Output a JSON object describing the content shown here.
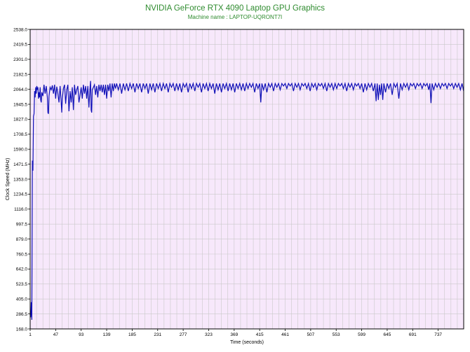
{
  "colors": {
    "plot_background": "#f7e8fb",
    "grid": "#c9c9c9",
    "series_line": "#1010b8",
    "title": "#2e8b2e",
    "axis": "#000000"
  },
  "chart_data": {
    "type": "line",
    "title": "NVIDIA GeForce RTX 4090 Laptop GPU Graphics",
    "subtitle": "Machine name : LAPTOP-UQRONT7I",
    "xlabel": "Time (seconds)",
    "ylabel": "Clock Speed (MHz)",
    "xlim": [
      1,
      783
    ],
    "ylim": [
      168.0,
      2538.0
    ],
    "x_ticks": [
      "1",
      "47",
      "93",
      "139",
      "185",
      "231",
      "277",
      "323",
      "369",
      "415",
      "461",
      "507",
      "553",
      "599",
      "645",
      "691",
      "737"
    ],
    "y_ticks": [
      "2538.0",
      "2419.5",
      "2301.0",
      "2182.5",
      "2064.0",
      "1945.5",
      "1827.0",
      "1708.5",
      "1590.0",
      "1471.5",
      "1353.0",
      "1234.5",
      "1116.0",
      "997.5",
      "879.0",
      "760.5",
      "642.0",
      "523.5",
      "405.0",
      "286.5",
      "168.0"
    ],
    "grid": true,
    "legend": "none",
    "series": [
      {
        "points": [
          [
            1,
            300
          ],
          [
            2,
            260
          ],
          [
            3,
            380
          ],
          [
            4,
            240
          ],
          [
            5,
            1500
          ],
          [
            6,
            1420
          ],
          [
            7,
            1850
          ],
          [
            8,
            1870
          ],
          [
            9,
            2050
          ],
          [
            10,
            2000
          ],
          [
            11,
            2080
          ],
          [
            12,
            2030
          ],
          [
            13,
            2090
          ],
          [
            14,
            2060
          ],
          [
            15,
            2080
          ],
          [
            16,
            1990
          ],
          [
            17,
            2040
          ],
          [
            18,
            2000
          ],
          [
            19,
            2080
          ],
          [
            20,
            1980
          ],
          [
            21,
            1960
          ],
          [
            22,
            2040
          ],
          [
            24,
            2010
          ],
          [
            26,
            2100
          ],
          [
            28,
            2030
          ],
          [
            30,
            2090
          ],
          [
            32,
            2000
          ],
          [
            33,
            1880
          ],
          [
            34,
            1870
          ],
          [
            35,
            2010
          ],
          [
            37,
            2080
          ],
          [
            39,
            2060
          ],
          [
            41,
            2095
          ],
          [
            43,
            2030
          ],
          [
            45,
            2100
          ],
          [
            47,
            1990
          ],
          [
            49,
            2085
          ],
          [
            51,
            2030
          ],
          [
            53,
            1960
          ],
          [
            55,
            2090
          ],
          [
            57,
            1960
          ],
          [
            58,
            1880
          ],
          [
            59,
            1990
          ],
          [
            61,
            2070
          ],
          [
            63,
            2100
          ],
          [
            65,
            1950
          ],
          [
            67,
            2060
          ],
          [
            69,
            2100
          ],
          [
            71,
            1890
          ],
          [
            73,
            2050
          ],
          [
            75,
            1960
          ],
          [
            77,
            2080
          ],
          [
            79,
            1900
          ],
          [
            81,
            2100
          ],
          [
            83,
            2020
          ],
          [
            85,
            2060
          ],
          [
            87,
            2090
          ],
          [
            89,
            1960
          ],
          [
            91,
            2020
          ],
          [
            93,
            2080
          ],
          [
            95,
            1990
          ],
          [
            97,
            2100
          ],
          [
            99,
            2030
          ],
          [
            101,
            2090
          ],
          [
            103,
            1990
          ],
          [
            105,
            2090
          ],
          [
            107,
            1920
          ],
          [
            109,
            2080
          ],
          [
            110,
            2130
          ],
          [
            111,
            1900
          ],
          [
            112,
            1880
          ],
          [
            113,
            2060
          ],
          [
            115,
            2080
          ],
          [
            117,
            2100
          ],
          [
            119,
            2020
          ],
          [
            121,
            2090
          ],
          [
            123,
            2000
          ],
          [
            125,
            2100
          ],
          [
            127,
            2050
          ],
          [
            129,
            2100
          ],
          [
            131,
            2040
          ],
          [
            133,
            2100
          ],
          [
            135,
            2020
          ],
          [
            137,
            2100
          ],
          [
            139,
            1990
          ],
          [
            141,
            2100
          ],
          [
            143,
            2050
          ],
          [
            145,
            2110
          ],
          [
            147,
            2000
          ],
          [
            149,
            2110
          ],
          [
            151,
            2050
          ],
          [
            153,
            2110
          ],
          [
            155,
            2070
          ],
          [
            157,
            2110
          ],
          [
            160,
            2060
          ],
          [
            163,
            2110
          ],
          [
            166,
            2030
          ],
          [
            169,
            2110
          ],
          [
            172,
            2060
          ],
          [
            175,
            2110
          ],
          [
            178,
            2050
          ],
          [
            181,
            2110
          ],
          [
            184,
            2070
          ],
          [
            187,
            2110
          ],
          [
            190,
            2040
          ],
          [
            193,
            2110
          ],
          [
            196,
            2070
          ],
          [
            199,
            2110
          ],
          [
            202,
            2040
          ],
          [
            205,
            2110
          ],
          [
            208,
            2070
          ],
          [
            211,
            2110
          ],
          [
            214,
            2030
          ],
          [
            217,
            2110
          ],
          [
            220,
            2060
          ],
          [
            223,
            2110
          ],
          [
            226,
            2040
          ],
          [
            229,
            2110
          ],
          [
            232,
            2070
          ],
          [
            235,
            2110
          ],
          [
            238,
            2050
          ],
          [
            241,
            2110
          ],
          [
            244,
            2070
          ],
          [
            247,
            2110
          ],
          [
            250,
            2040
          ],
          [
            253,
            2110
          ],
          [
            256,
            2080
          ],
          [
            259,
            2110
          ],
          [
            262,
            2050
          ],
          [
            265,
            2110
          ],
          [
            268,
            2060
          ],
          [
            271,
            2110
          ],
          [
            274,
            2040
          ],
          [
            277,
            2110
          ],
          [
            280,
            2080
          ],
          [
            283,
            2110
          ],
          [
            286,
            2040
          ],
          [
            289,
            2110
          ],
          [
            292,
            2070
          ],
          [
            295,
            2110
          ],
          [
            298,
            2050
          ],
          [
            301,
            2110
          ],
          [
            304,
            2080
          ],
          [
            307,
            2110
          ],
          [
            310,
            2040
          ],
          [
            313,
            2110
          ],
          [
            316,
            2070
          ],
          [
            319,
            2110
          ],
          [
            322,
            2050
          ],
          [
            325,
            2110
          ],
          [
            328,
            2070
          ],
          [
            331,
            2110
          ],
          [
            334,
            2030
          ],
          [
            337,
            2110
          ],
          [
            340,
            2060
          ],
          [
            343,
            2110
          ],
          [
            346,
            2040
          ],
          [
            349,
            2110
          ],
          [
            352,
            2070
          ],
          [
            355,
            2110
          ],
          [
            358,
            2050
          ],
          [
            361,
            2110
          ],
          [
            364,
            2060
          ],
          [
            367,
            2110
          ],
          [
            370,
            2040
          ],
          [
            373,
            2110
          ],
          [
            376,
            2070
          ],
          [
            379,
            2110
          ],
          [
            382,
            2060
          ],
          [
            385,
            2110
          ],
          [
            388,
            2050
          ],
          [
            391,
            2110
          ],
          [
            394,
            2070
          ],
          [
            397,
            2110
          ],
          [
            400,
            2080
          ],
          [
            403,
            2110
          ],
          [
            406,
            2040
          ],
          [
            409,
            2110
          ],
          [
            412,
            2070
          ],
          [
            415,
            2110
          ],
          [
            417,
            1960
          ],
          [
            419,
            2110
          ],
          [
            422,
            2060
          ],
          [
            425,
            2110
          ],
          [
            428,
            2040
          ],
          [
            431,
            2110
          ],
          [
            434,
            2080
          ],
          [
            437,
            2110
          ],
          [
            440,
            2050
          ],
          [
            443,
            2110
          ],
          [
            446,
            2080
          ],
          [
            449,
            2110
          ],
          [
            452,
            2060
          ],
          [
            455,
            2110
          ],
          [
            458,
            2090
          ],
          [
            461,
            2110
          ],
          [
            464,
            2070
          ],
          [
            467,
            2110
          ],
          [
            470,
            2090
          ],
          [
            473,
            2110
          ],
          [
            476,
            2050
          ],
          [
            479,
            2110
          ],
          [
            482,
            2080
          ],
          [
            485,
            2110
          ],
          [
            488,
            2060
          ],
          [
            491,
            2110
          ],
          [
            494,
            2090
          ],
          [
            497,
            2110
          ],
          [
            500,
            2070
          ],
          [
            503,
            2110
          ],
          [
            506,
            2050
          ],
          [
            509,
            2110
          ],
          [
            512,
            2080
          ],
          [
            515,
            2110
          ],
          [
            518,
            2060
          ],
          [
            521,
            2110
          ],
          [
            524,
            2090
          ],
          [
            527,
            2110
          ],
          [
            530,
            2070
          ],
          [
            533,
            2110
          ],
          [
            536,
            2050
          ],
          [
            539,
            2110
          ],
          [
            542,
            2080
          ],
          [
            545,
            2110
          ],
          [
            548,
            2060
          ],
          [
            551,
            2110
          ],
          [
            554,
            2070
          ],
          [
            557,
            2110
          ],
          [
            560,
            2090
          ],
          [
            563,
            2110
          ],
          [
            566,
            2070
          ],
          [
            569,
            2110
          ],
          [
            572,
            2050
          ],
          [
            575,
            2110
          ],
          [
            578,
            2080
          ],
          [
            581,
            2110
          ],
          [
            584,
            2060
          ],
          [
            587,
            2110
          ],
          [
            590,
            2090
          ],
          [
            593,
            2110
          ],
          [
            596,
            2070
          ],
          [
            599,
            2110
          ],
          [
            602,
            2040
          ],
          [
            605,
            2110
          ],
          [
            608,
            2060
          ],
          [
            611,
            2110
          ],
          [
            614,
            2080
          ],
          [
            617,
            2110
          ],
          [
            620,
            2050
          ],
          [
            623,
            2110
          ],
          [
            625,
            1970
          ],
          [
            627,
            2110
          ],
          [
            629,
            1980
          ],
          [
            631,
            2100
          ],
          [
            633,
            2020
          ],
          [
            635,
            2110
          ],
          [
            637,
            1980
          ],
          [
            639,
            2110
          ],
          [
            642,
            2040
          ],
          [
            645,
            2110
          ],
          [
            648,
            2070
          ],
          [
            651,
            2110
          ],
          [
            654,
            2020
          ],
          [
            657,
            2110
          ],
          [
            660,
            2080
          ],
          [
            663,
            2110
          ],
          [
            666,
            1990
          ],
          [
            669,
            2110
          ],
          [
            672,
            2060
          ],
          [
            675,
            2110
          ],
          [
            678,
            2080
          ],
          [
            681,
            2110
          ],
          [
            684,
            2060
          ],
          [
            687,
            2110
          ],
          [
            690,
            2090
          ],
          [
            693,
            2110
          ],
          [
            696,
            2070
          ],
          [
            699,
            2110
          ],
          [
            702,
            2090
          ],
          [
            705,
            2110
          ],
          [
            708,
            2070
          ],
          [
            711,
            2110
          ],
          [
            714,
            2090
          ],
          [
            717,
            2110
          ],
          [
            720,
            2060
          ],
          [
            722,
            2110
          ],
          [
            724,
            1955
          ],
          [
            726,
            2110
          ],
          [
            729,
            2060
          ],
          [
            732,
            2110
          ],
          [
            735,
            2080
          ],
          [
            738,
            2110
          ],
          [
            741,
            2070
          ],
          [
            744,
            2110
          ],
          [
            747,
            2090
          ],
          [
            750,
            2110
          ],
          [
            753,
            2070
          ],
          [
            756,
            2110
          ],
          [
            759,
            2090
          ],
          [
            762,
            2110
          ],
          [
            765,
            2070
          ],
          [
            768,
            2110
          ],
          [
            771,
            2080
          ],
          [
            774,
            2110
          ],
          [
            777,
            2060
          ],
          [
            780,
            2110
          ],
          [
            783,
            2050
          ]
        ]
      }
    ]
  }
}
